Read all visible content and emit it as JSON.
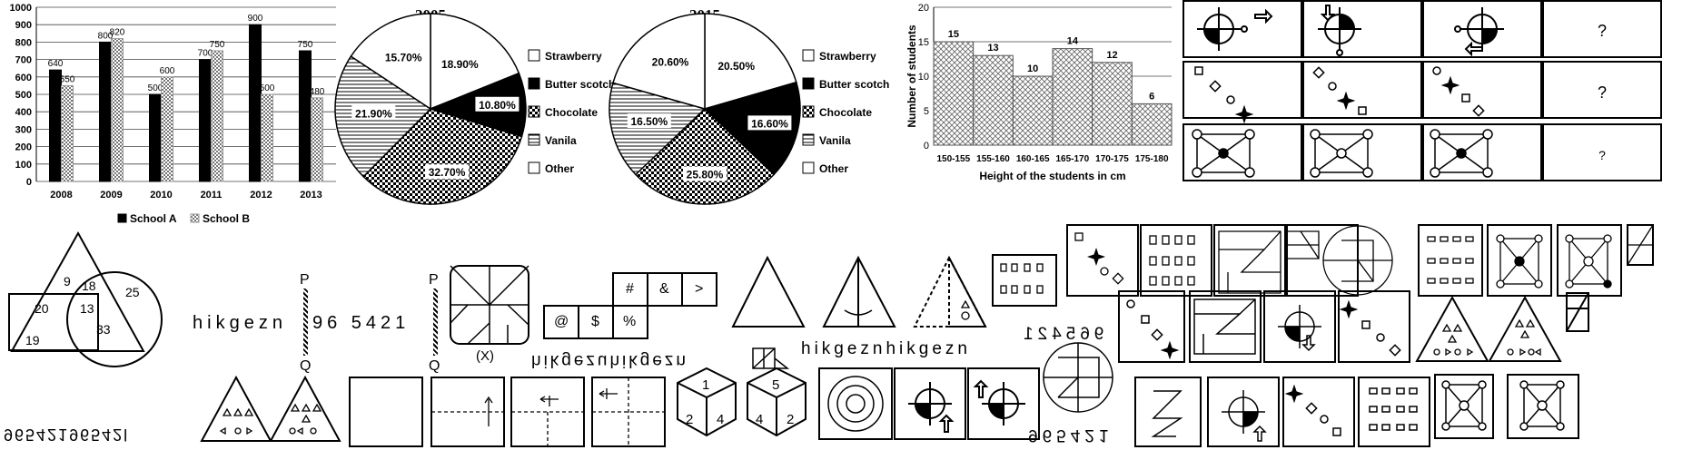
{
  "chart_data": [
    {
      "type": "bar",
      "categories": [
        "2008",
        "2009",
        "2010",
        "2011",
        "2012",
        "2013"
      ],
      "series": [
        {
          "name": "School A",
          "values": [
            640,
            800,
            500,
            700,
            900,
            750
          ],
          "color": "#000000",
          "pattern": "solid"
        },
        {
          "name": "School B",
          "values": [
            550,
            820,
            600,
            750,
            500,
            480
          ],
          "color": "#9a9a9a",
          "pattern": "dots"
        }
      ],
      "ylim": [
        0,
        1000
      ],
      "yticks": [
        "0",
        "100",
        "200",
        "300",
        "400",
        "500",
        "600",
        "700",
        "800",
        "900",
        "1000"
      ],
      "grid": true,
      "legend": "bottom"
    },
    {
      "type": "pie",
      "title": "2005",
      "slices": [
        {
          "label": "Strawberry",
          "value": 18.9,
          "text": "18.90%",
          "pattern": "white"
        },
        {
          "label": "Butter scotch",
          "value": 10.8,
          "text": "10.80%",
          "pattern": "black"
        },
        {
          "label": "Chocolate",
          "value": 32.7,
          "text": "32.70%",
          "pattern": "checker"
        },
        {
          "label": "Vanila",
          "value": 21.9,
          "text": "21.90%",
          "pattern": "hlines"
        },
        {
          "label": "Other",
          "value": 15.7,
          "text": "15.70%",
          "pattern": "white"
        }
      ],
      "legend": "right"
    },
    {
      "type": "pie",
      "title": "2015",
      "slices": [
        {
          "label": "Strawberry",
          "value": 20.5,
          "text": "20.50%",
          "pattern": "white"
        },
        {
          "label": "Butter scotch",
          "value": 16.6,
          "text": "16.60%",
          "pattern": "black"
        },
        {
          "label": "Chocolate",
          "value": 25.8,
          "text": "25.80%",
          "pattern": "checker"
        },
        {
          "label": "Vanila",
          "value": 16.5,
          "text": "16.50%",
          "pattern": "hlines"
        },
        {
          "label": "Other",
          "value": 20.6,
          "text": "20.60%",
          "pattern": "white"
        }
      ],
      "legend": "right"
    },
    {
      "type": "bar",
      "categories": [
        "150-155",
        "155-160",
        "160-165",
        "165-170",
        "170-175",
        "175-180"
      ],
      "values": [
        15,
        13,
        10,
        14,
        12,
        6
      ],
      "xlabel": "Height of the students in cm",
      "ylabel": "Number of students",
      "ylim": [
        0,
        20
      ],
      "yticks": [
        "0",
        "5",
        "10",
        "15",
        "20"
      ],
      "grid": true,
      "pattern": "crosshatch"
    }
  ],
  "venn": {
    "triangle_only": "9",
    "tri_circle": "18",
    "circle_only": "25",
    "rect_tri": "20",
    "center": "13",
    "rect_circle": "33",
    "rect_only": "19"
  },
  "mirror_question": {
    "word": "hikgezn",
    "number": "96 5421",
    "top_label": "P",
    "bottom_label": "Q"
  },
  "mirror_question_2": {
    "top_label": "P",
    "bottom_label": "Q",
    "option_label": "(X)"
  },
  "cube_net": [
    "#",
    "&",
    ">",
    "@",
    "$",
    "%"
  ],
  "question_mark": "?",
  "mirror_answers": {
    "a": "hikgezuhikgezn",
    "b": "hikgeznhikgezn",
    "c": "hikgeznhikgezn",
    "d": "965421",
    "e": "965421",
    "f": "965421",
    "g": "96542196542l"
  },
  "dice": [
    {
      "top": "1",
      "left": "2",
      "right": "4"
    },
    {
      "top": "5",
      "left": "4",
      "right": "2"
    }
  ]
}
